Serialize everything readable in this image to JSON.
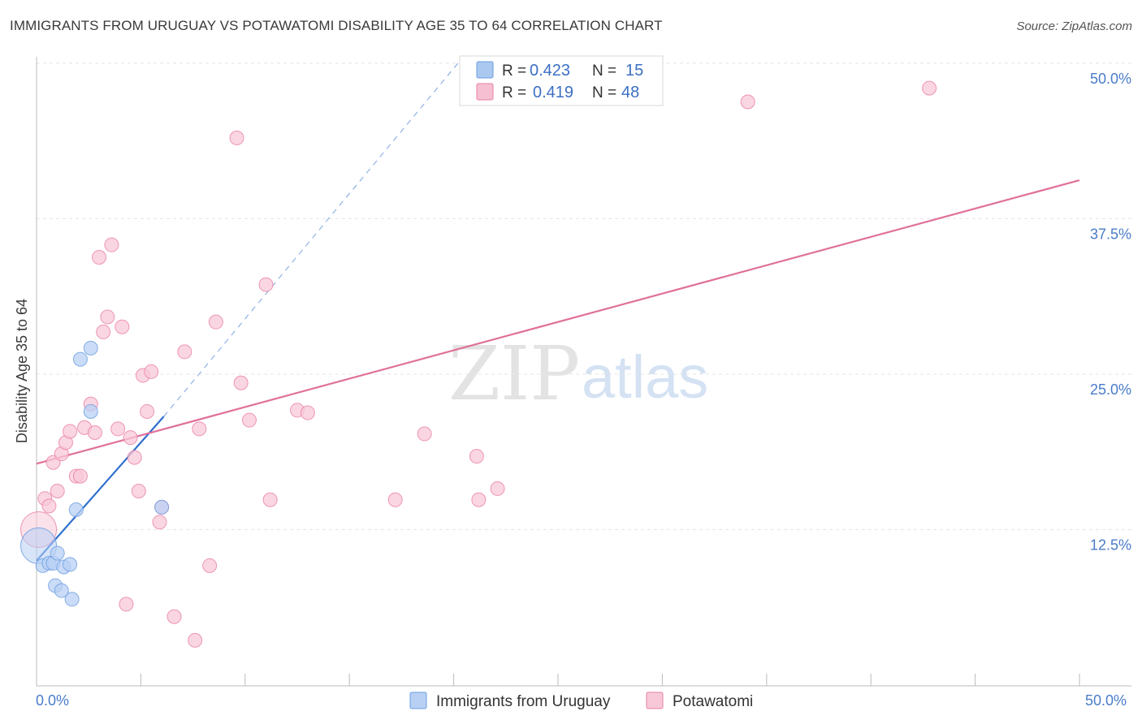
{
  "title": "IMMIGRANTS FROM URUGUAY VS POTAWATOMI DISABILITY AGE 35 TO 64 CORRELATION CHART",
  "source": "Source: ZipAtlas.com",
  "watermark": {
    "zip": "ZIP",
    "atlas": "atlas"
  },
  "legend": {
    "r_label": "R =",
    "n_label": "N =",
    "rows": [
      {
        "r": "0.423",
        "n": "15",
        "color": "#aac8f0",
        "stroke": "#6a9ee0"
      },
      {
        "r": "0.419",
        "n": "48",
        "color": "#f6c0d2",
        "stroke": "#e87fa4"
      }
    ]
  },
  "bottom_legend": [
    {
      "label": "Immigrants from Uruguay",
      "color": "#b8d0f4",
      "stroke": "#6a9ee0"
    },
    {
      "label": "Potawatomi",
      "color": "#f8c8d8",
      "stroke": "#e87fa4"
    }
  ],
  "chart_data": {
    "type": "scatter",
    "title": "IMMIGRANTS FROM URUGUAY VS POTAWATOMI DISABILITY AGE 35 TO 64 CORRELATION CHART",
    "xlabel": "",
    "ylabel": "Disability Age 35 to 64",
    "xlim": [
      0,
      50
    ],
    "ylim": [
      0,
      52
    ],
    "x_tick_labels": [
      "0.0%",
      "50.0%"
    ],
    "y_ticks": [
      12.5,
      25.0,
      37.5,
      50.0
    ],
    "y_tick_labels": [
      "12.5%",
      "25.0%",
      "37.5%",
      "50.0%"
    ],
    "series": [
      {
        "name": "Immigrants from Uruguay",
        "color": "#6a9ee0",
        "fill": "#b8d0f4",
        "points": [
          {
            "x": 0.1,
            "y": 11.2,
            "big": true
          },
          {
            "x": 0.3,
            "y": 9.6
          },
          {
            "x": 0.6,
            "y": 9.8
          },
          {
            "x": 0.8,
            "y": 9.8
          },
          {
            "x": 1.0,
            "y": 10.6
          },
          {
            "x": 1.3,
            "y": 9.5
          },
          {
            "x": 1.6,
            "y": 9.7
          },
          {
            "x": 0.9,
            "y": 8.0
          },
          {
            "x": 1.2,
            "y": 7.6
          },
          {
            "x": 1.7,
            "y": 6.9
          },
          {
            "x": 1.9,
            "y": 14.1
          },
          {
            "x": 2.1,
            "y": 26.2
          },
          {
            "x": 2.6,
            "y": 27.1
          },
          {
            "x": 2.6,
            "y": 22.0
          },
          {
            "x": 6.0,
            "y": 14.3
          }
        ],
        "trend": {
          "x0": 0,
          "y0": 10.0,
          "x1": 6.1,
          "y1": 21.6
        },
        "trend_ext": {
          "x0": 6.1,
          "y0": 21.6,
          "x1": 20.5,
          "y1": 50.6
        }
      },
      {
        "name": "Potawatomi",
        "color": "#e87fa4",
        "fill": "#f8c8d8",
        "points": [
          {
            "x": 0.1,
            "y": 12.5,
            "big": true
          },
          {
            "x": 0.4,
            "y": 15.0
          },
          {
            "x": 0.6,
            "y": 14.4
          },
          {
            "x": 0.8,
            "y": 17.9
          },
          {
            "x": 1.0,
            "y": 15.6
          },
          {
            "x": 1.2,
            "y": 18.6
          },
          {
            "x": 1.4,
            "y": 19.5
          },
          {
            "x": 1.6,
            "y": 20.4
          },
          {
            "x": 1.9,
            "y": 16.8
          },
          {
            "x": 2.1,
            "y": 16.8
          },
          {
            "x": 2.3,
            "y": 20.7
          },
          {
            "x": 2.6,
            "y": 22.6
          },
          {
            "x": 2.8,
            "y": 20.3
          },
          {
            "x": 3.0,
            "y": 34.4
          },
          {
            "x": 3.2,
            "y": 28.4
          },
          {
            "x": 3.4,
            "y": 29.6
          },
          {
            "x": 3.6,
            "y": 35.4
          },
          {
            "x": 3.9,
            "y": 20.6
          },
          {
            "x": 4.1,
            "y": 28.8
          },
          {
            "x": 4.3,
            "y": 6.5
          },
          {
            "x": 4.5,
            "y": 19.9
          },
          {
            "x": 4.7,
            "y": 18.3
          },
          {
            "x": 4.9,
            "y": 15.6
          },
          {
            "x": 5.1,
            "y": 24.9
          },
          {
            "x": 5.3,
            "y": 22.0
          },
          {
            "x": 5.5,
            "y": 25.2
          },
          {
            "x": 5.9,
            "y": 13.1
          },
          {
            "x": 6.0,
            "y": 14.3
          },
          {
            "x": 6.6,
            "y": 5.5
          },
          {
            "x": 7.1,
            "y": 26.8
          },
          {
            "x": 7.6,
            "y": 3.6
          },
          {
            "x": 7.8,
            "y": 20.6
          },
          {
            "x": 8.3,
            "y": 9.6
          },
          {
            "x": 8.6,
            "y": 29.2
          },
          {
            "x": 9.6,
            "y": 44.0
          },
          {
            "x": 9.8,
            "y": 24.3
          },
          {
            "x": 10.2,
            "y": 21.3
          },
          {
            "x": 11.0,
            "y": 32.2
          },
          {
            "x": 11.2,
            "y": 14.9
          },
          {
            "x": 12.5,
            "y": 22.1
          },
          {
            "x": 13.0,
            "y": 21.9
          },
          {
            "x": 17.2,
            "y": 14.9
          },
          {
            "x": 18.6,
            "y": 20.2
          },
          {
            "x": 21.1,
            "y": 18.4
          },
          {
            "x": 21.2,
            "y": 14.9
          },
          {
            "x": 22.1,
            "y": 15.8
          },
          {
            "x": 34.1,
            "y": 46.9
          },
          {
            "x": 42.8,
            "y": 48.0
          }
        ],
        "trend": {
          "x0": 0,
          "y0": 17.8,
          "x1": 50,
          "y1": 40.6
        }
      }
    ]
  }
}
